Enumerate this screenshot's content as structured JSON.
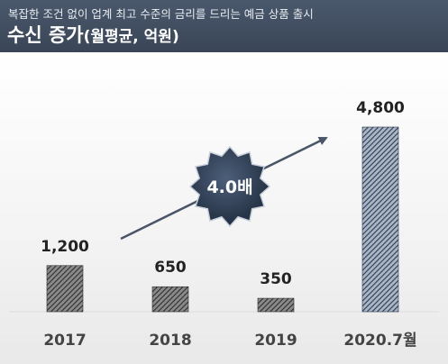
{
  "header": {
    "subtitle": "복잡한 조건 없이 업계 최고 수준의 금리를 드리는 예금 상품 출시",
    "title": "수신 증가",
    "title_unit": "(월평균, 억원)"
  },
  "chart_data": {
    "type": "bar",
    "categories": [
      "2017",
      "2018",
      "2019",
      "2020.7월"
    ],
    "values": [
      1200,
      650,
      350,
      4800
    ],
    "data_labels": [
      "1,200",
      "650",
      "350",
      "4,800"
    ],
    "title": "수신 증가",
    "ylabel": "(월평균, 억원)",
    "ylim": [
      0,
      4800
    ],
    "grid": false,
    "annotation": "4.0배",
    "colors": {
      "hatch_dark": "#3a3a3a",
      "hatch_light": "#9a9a9a",
      "highlight_dark": "#2f3d52",
      "highlight_light": "#a9b4c4",
      "arrow": "#4a5568",
      "badge": "#2c3a4f"
    }
  }
}
